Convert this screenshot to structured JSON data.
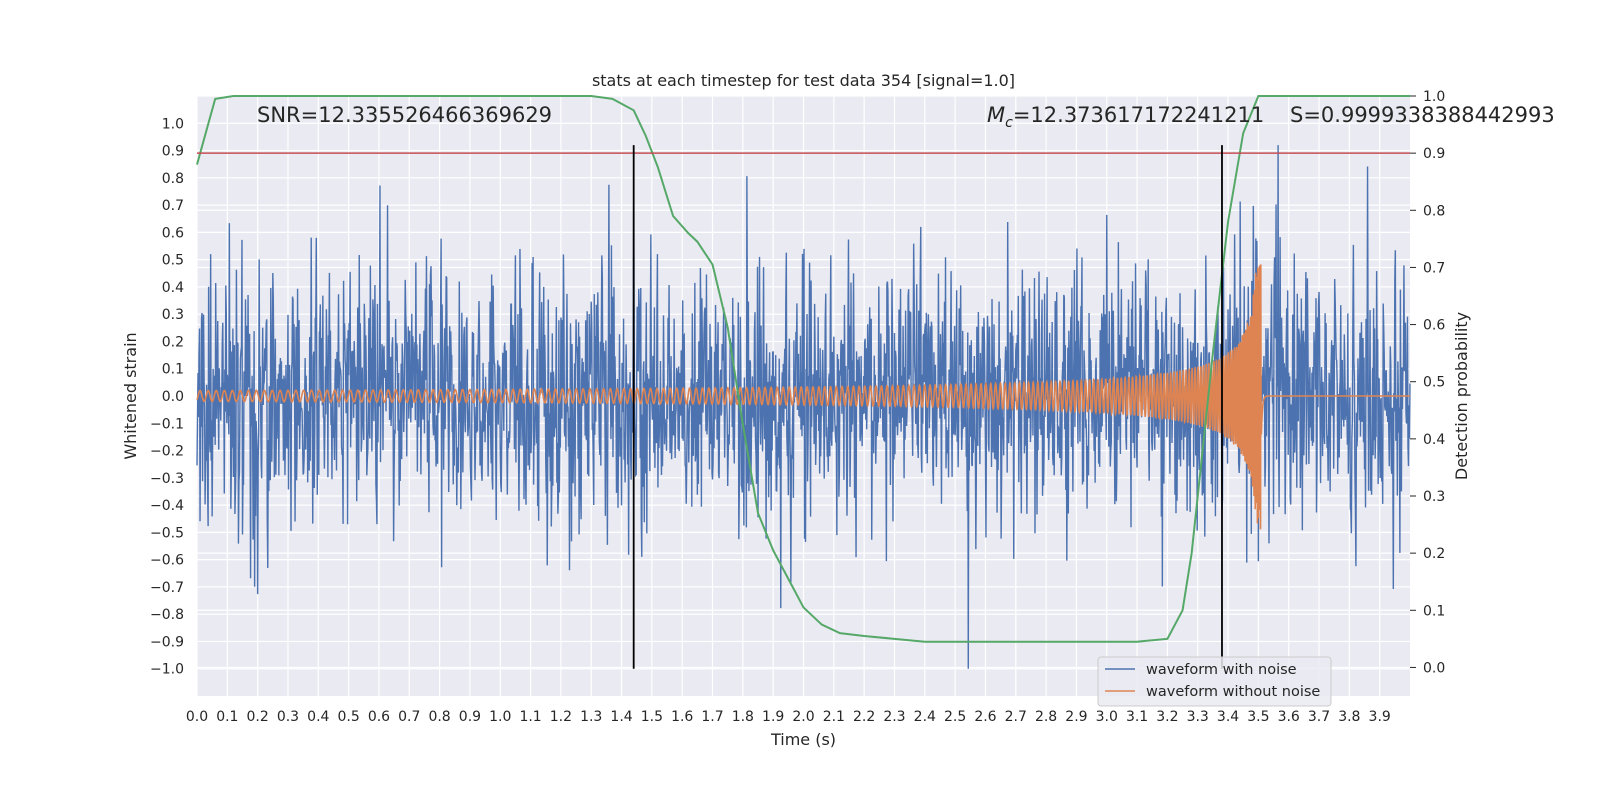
{
  "chart_data": {
    "type": "line",
    "title": "stats at each timestep for test data 354 [signal=1.0]",
    "xlabel": "Time (s)",
    "ylabel": "Whitened strain",
    "y2label": "Detection probability",
    "xlim": [
      0,
      4.0
    ],
    "ylim": [
      -1.1,
      1.1
    ],
    "y2lim": [
      -0.05,
      1.0
    ],
    "x_ticks": [
      "0.0",
      "0.1",
      "0.2",
      "0.3",
      "0.4",
      "0.5",
      "0.6",
      "0.7",
      "0.8",
      "0.9",
      "1.0",
      "1.1",
      "1.2",
      "1.3",
      "1.4",
      "1.5",
      "1.6",
      "1.7",
      "1.8",
      "1.9",
      "2.0",
      "2.1",
      "2.2",
      "2.3",
      "2.4",
      "2.5",
      "2.6",
      "2.7",
      "2.8",
      "2.9",
      "3.0",
      "3.1",
      "3.2",
      "3.3",
      "3.4",
      "3.5",
      "3.6",
      "3.7",
      "3.8",
      "3.9"
    ],
    "y_ticks": [
      "1.0",
      "0.9",
      "0.8",
      "0.7",
      "0.6",
      "0.5",
      "0.4",
      "0.3",
      "0.2",
      "0.1",
      "0.0",
      "−0.1",
      "−0.2",
      "−0.3",
      "−0.4",
      "−0.5",
      "−0.6",
      "−0.7",
      "−0.8",
      "−0.9",
      "−1.0"
    ],
    "y2_ticks": [
      "1.0",
      "0.9",
      "0.8",
      "0.7",
      "0.6",
      "0.5",
      "0.4",
      "0.3",
      "0.2",
      "0.1",
      "0.0"
    ],
    "grid": true,
    "legend_position": "bottom-right",
    "annotations": {
      "snr": "SNR=12.335526466369629",
      "mc_symbol": "M",
      "mc_sub": "c",
      "mc_value": "=12.373617172241211",
      "s": "S=0.9999338388442993"
    },
    "series": [
      {
        "name": "waveform with noise",
        "color": "#4c72b0",
        "description_free": true,
        "x_range": [
          0,
          4.0
        ]
      },
      {
        "name": "waveform without noise",
        "color": "#dd8452",
        "x_range": [
          0,
          4.0
        ],
        "merger_time": 3.51,
        "peak_amplitude": 0.49
      },
      {
        "color": "#55a868",
        "axis": "y2",
        "x": [
          0.0,
          0.06,
          0.12,
          0.2,
          0.5,
          1.0,
          1.3,
          1.37,
          1.44,
          1.48,
          1.52,
          1.57,
          1.62,
          1.65,
          1.7,
          1.75,
          1.8,
          1.85,
          1.9,
          1.95,
          2.0,
          2.06,
          2.12,
          2.2,
          2.3,
          2.4,
          3.0,
          3.1,
          3.2,
          3.25,
          3.28,
          3.31,
          3.35,
          3.4,
          3.45,
          3.5,
          3.6,
          3.8,
          4.0
        ],
        "y": [
          0.88,
          0.995,
          1.0,
          1.0,
          1.0,
          1.0,
          1.0,
          0.995,
          0.975,
          0.93,
          0.875,
          0.79,
          0.76,
          0.745,
          0.705,
          0.595,
          0.425,
          0.27,
          0.205,
          0.155,
          0.105,
          0.075,
          0.06,
          0.055,
          0.05,
          0.045,
          0.045,
          0.045,
          0.05,
          0.1,
          0.2,
          0.35,
          0.55,
          0.78,
          0.935,
          1.0,
          1.0,
          1.0,
          1.0
        ]
      }
    ],
    "threshold_y2": 0.9,
    "threshold_color": "#c44e52",
    "vertical_lines_x": [
      1.44,
      3.38
    ],
    "background_color": "#eaeaf2"
  }
}
